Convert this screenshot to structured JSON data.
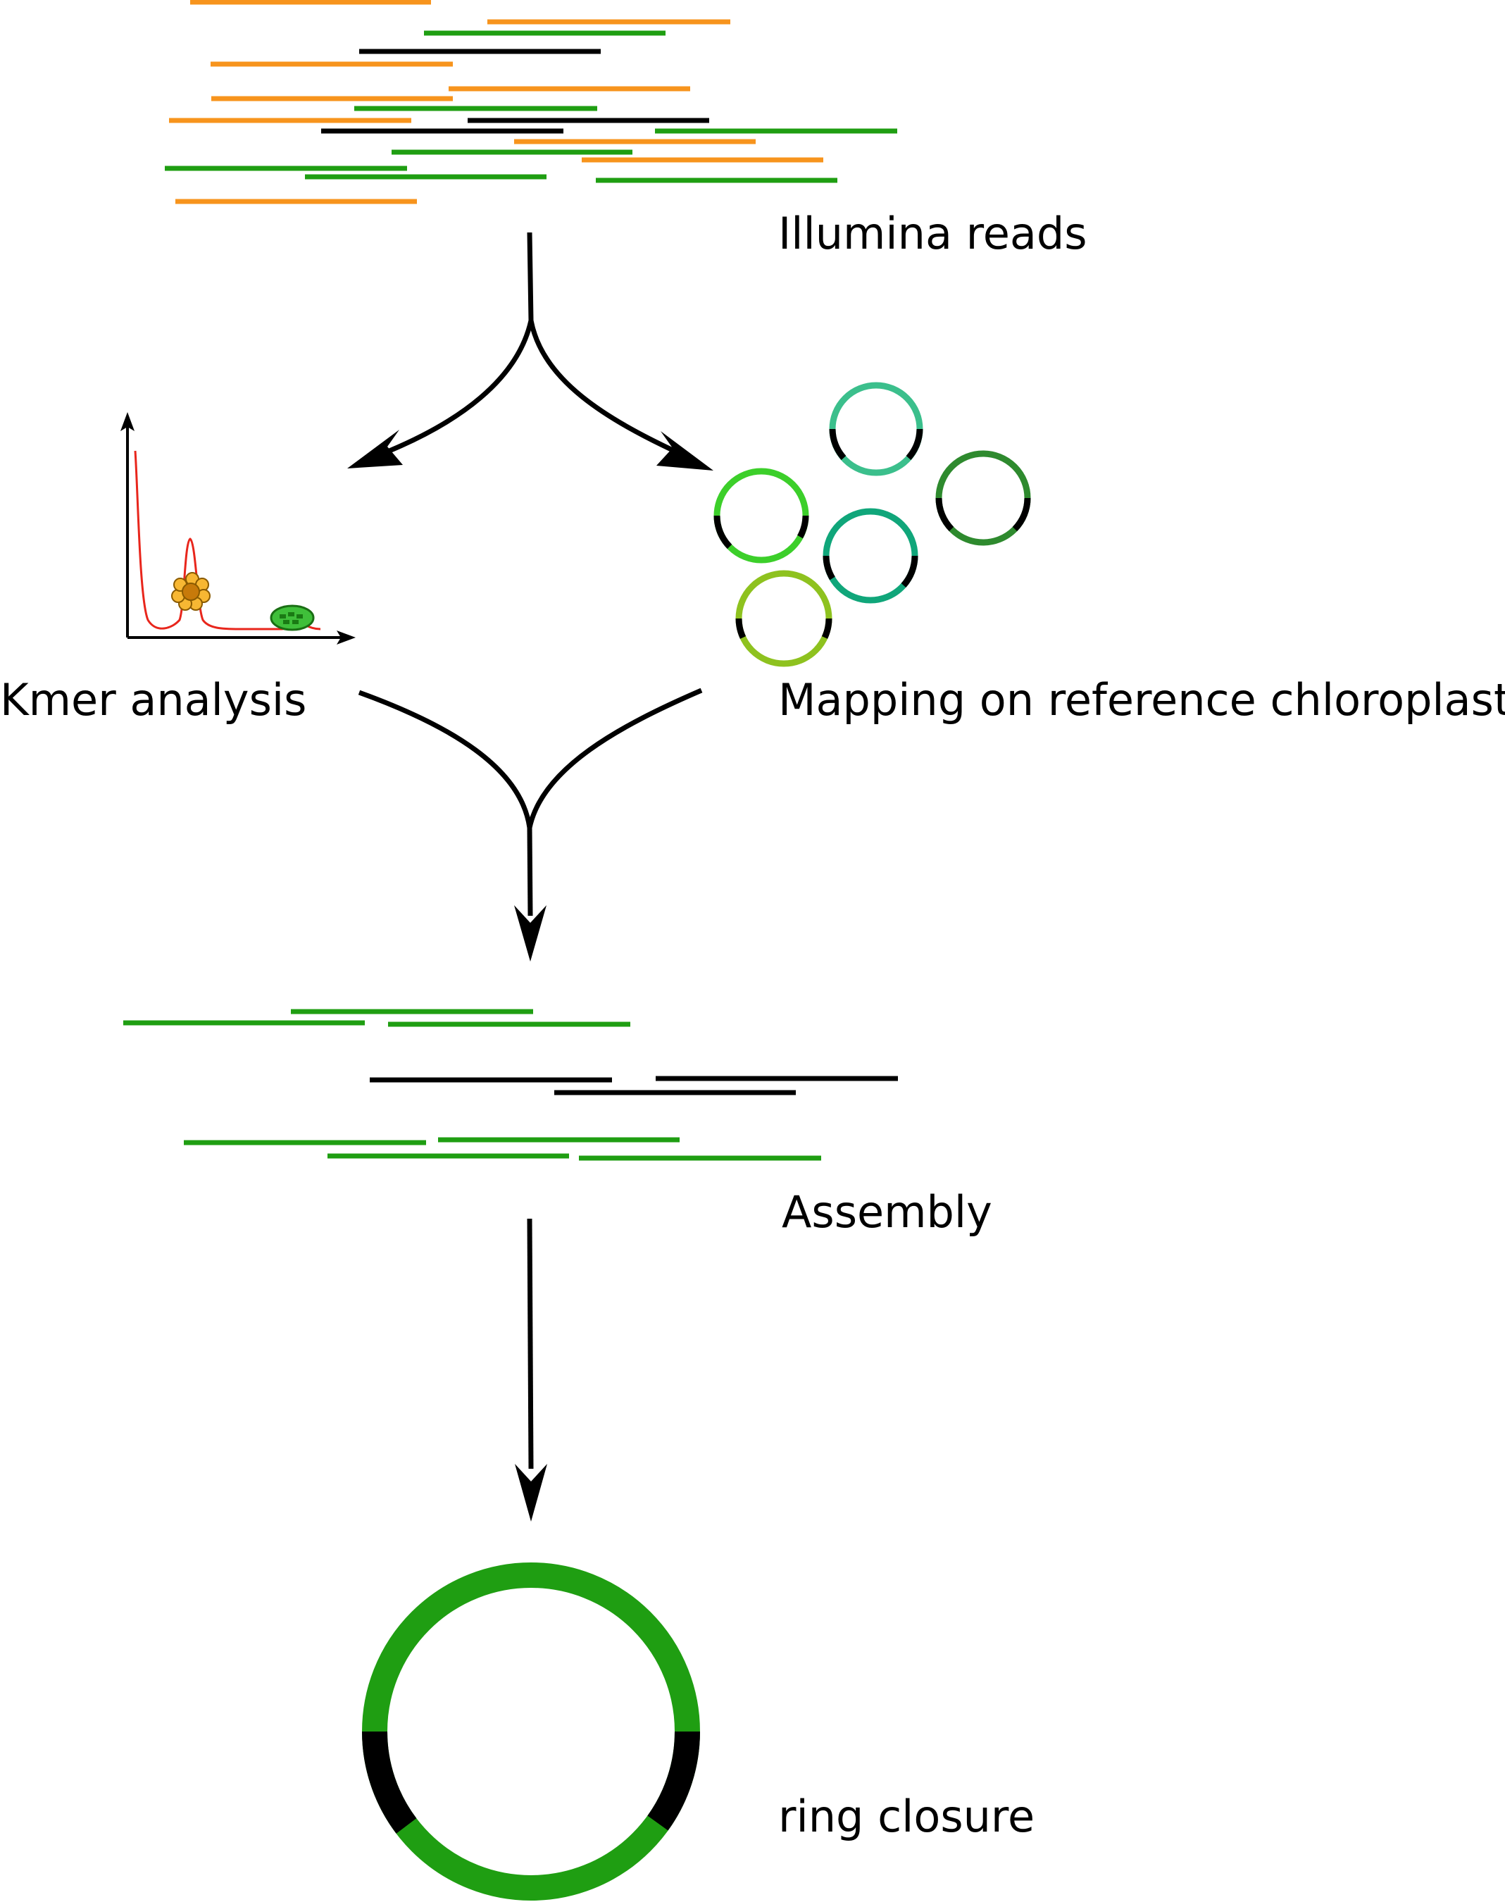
{
  "labels": {
    "illumina_reads": "Illumina reads",
    "kmer_analysis": "Kmer analysis",
    "mapping": "Mapping on reference chloroplasts",
    "assembly": "Assembly",
    "ring_closure": "ring closure"
  },
  "colors": {
    "orange_read": "#f7941d",
    "green_read": "#1f9e12",
    "black_read": "#000000",
    "arrow": "#000000",
    "kmer_curve": "#e8261c",
    "ring_green": "#1f9e12",
    "ring_black": "#000000"
  },
  "reference_ring_colors": [
    "#3bbf8c",
    "#3ccf2a",
    "#10a67a",
    "#2e8a2e",
    "#8ec21f"
  ]
}
